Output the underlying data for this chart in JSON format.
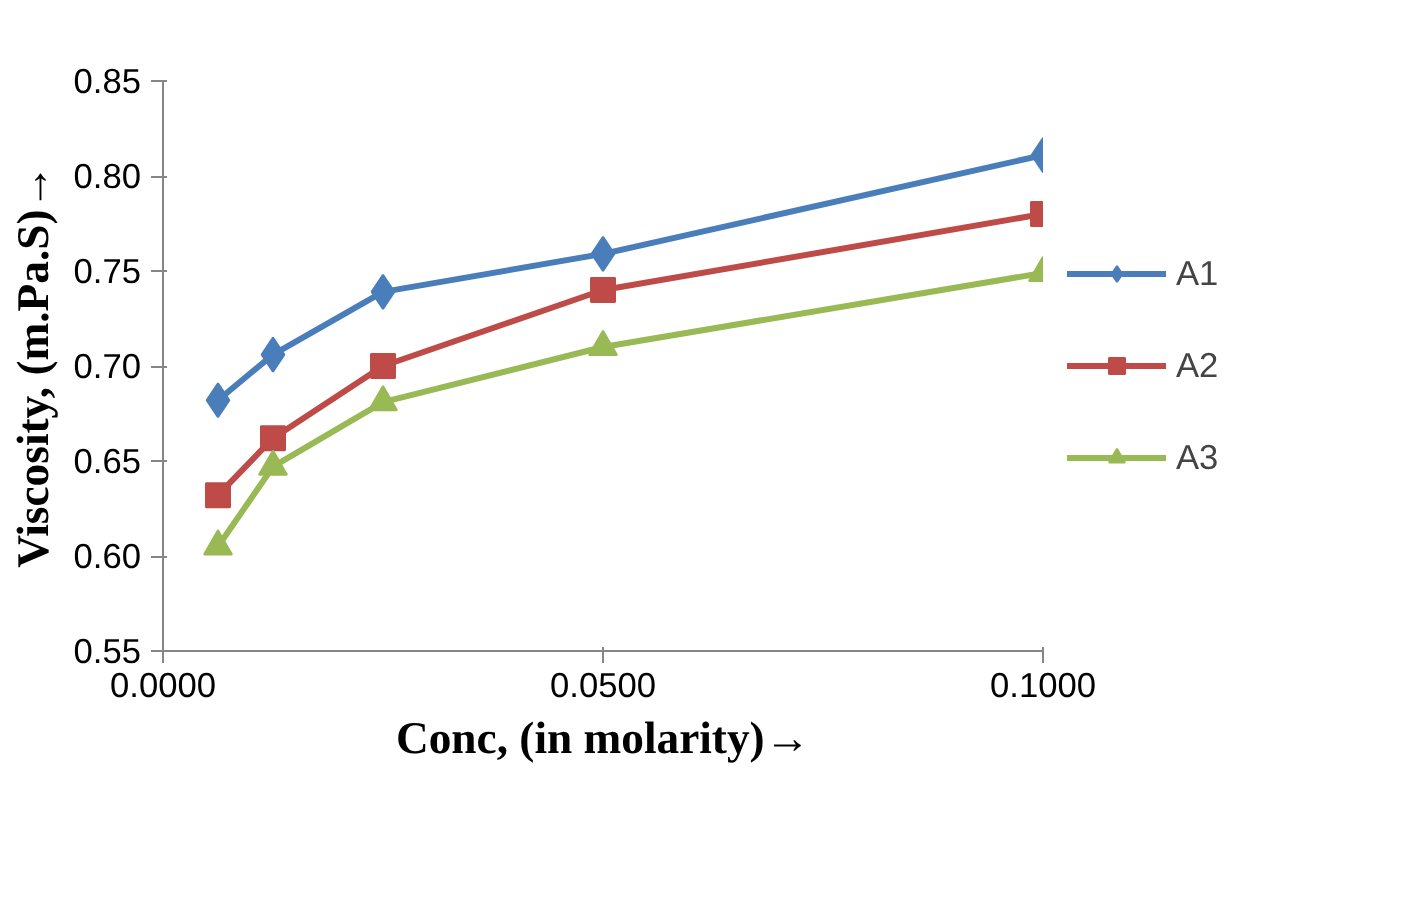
{
  "chart_data": {
    "type": "line",
    "xlabel": "Conc, (in molarity)→",
    "ylabel": "Viscosity, (m.Pa.S)→",
    "x": [
      0.00625,
      0.0125,
      0.025,
      0.05,
      0.1
    ],
    "series": [
      {
        "name": "A1",
        "color": "#4a7ebb",
        "marker": "diamond",
        "values": [
          0.682,
          0.706,
          0.739,
          0.759,
          0.811
        ]
      },
      {
        "name": "A2",
        "color": "#be4b48",
        "marker": "square",
        "values": [
          0.632,
          0.662,
          0.7,
          0.74,
          0.78
        ]
      },
      {
        "name": "A3",
        "color": "#98b954",
        "marker": "triangle",
        "values": [
          0.605,
          0.647,
          0.681,
          0.71,
          0.749
        ]
      }
    ],
    "xlim": [
      0,
      0.1
    ],
    "xticks": [
      {
        "value": 0,
        "label": "0.0000"
      },
      {
        "value": 0.05,
        "label": "0.0500"
      },
      {
        "value": 0.1,
        "label": "0.1000"
      }
    ],
    "ylim": [
      0.55,
      0.85
    ],
    "yticks": [
      {
        "value": 0.55,
        "label": "0.55"
      },
      {
        "value": 0.6,
        "label": "0.60"
      },
      {
        "value": 0.65,
        "label": "0.65"
      },
      {
        "value": 0.7,
        "label": "0.70"
      },
      {
        "value": 0.75,
        "label": "0.75"
      },
      {
        "value": 0.8,
        "label": "0.80"
      },
      {
        "value": 0.85,
        "label": "0.85"
      }
    ],
    "grid": false,
    "legend": "right",
    "line_style": "solid"
  }
}
